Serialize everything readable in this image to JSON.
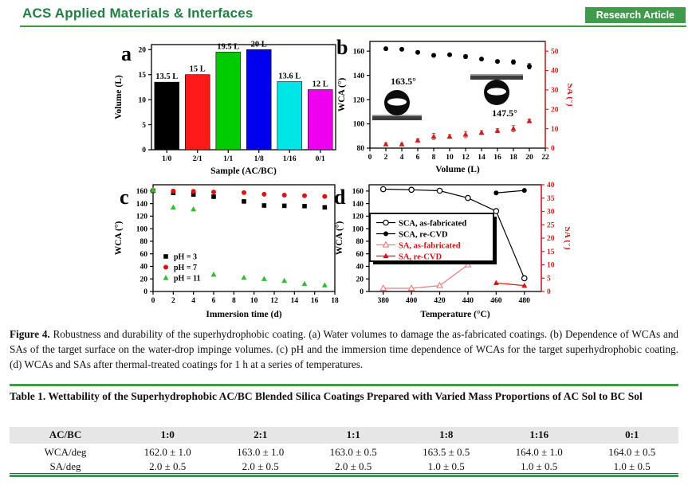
{
  "header": {
    "journal": "ACS Applied Materials & Interfaces",
    "badge": "Research Article",
    "title_color": "#1f8040",
    "badge_bg": "#3f9b4a",
    "rule_color": "#3f9b4a"
  },
  "figure": {
    "caption_label": "Figure 4.",
    "caption_text": "Robustness and durability of the superhydrophobic coating. (a) Water volumes to damage the as-fabricated coatings. (b) Dependence of WCAs and SAs of the target surface on the water-drop impinge volumes. (c) pH and the immersion time dependence of WCAs for the target superhydrophobic coating. (d) WCAs and SAs after thermal-treated coatings for 1 h at a series of temperatures."
  },
  "chart_data": [
    {
      "panel": "a",
      "type": "bar",
      "xlabel": "Sample (AC/BC)",
      "ylabel": "Volume (L)",
      "categories": [
        "1/0",
        "2/1",
        "1/1",
        "1/8",
        "1/16",
        "0/1"
      ],
      "values": [
        13.5,
        15,
        19.5,
        20,
        13.6,
        12
      ],
      "bar_labels": [
        "13.5 L",
        "15 L",
        "19.5 L",
        "20 L",
        "13.6 L",
        "12 L"
      ],
      "bar_colors": [
        "#000000",
        "#ff1a1a",
        "#00cc00",
        "#0000ee",
        "#00e6e6",
        "#ee00ee"
      ],
      "ylim": [
        0,
        21
      ],
      "yticks": [
        0,
        5,
        10,
        15,
        20
      ],
      "grid": false
    },
    {
      "panel": "b",
      "type": "scatter",
      "xlabel": "Volume (L)",
      "ylabel": "WCA (°)",
      "ylabel_right": "SA (°)",
      "right_axis_color": "#cc2020",
      "xlim": [
        0,
        22
      ],
      "xticks": [
        0,
        2,
        4,
        6,
        8,
        10,
        12,
        14,
        16,
        18,
        20,
        22
      ],
      "ylim": [
        80,
        168
      ],
      "yticks": [
        80,
        100,
        120,
        140,
        160
      ],
      "ylim_right": [
        0,
        55
      ],
      "yticks_right": [
        0,
        10,
        20,
        30,
        40,
        50
      ],
      "series": [
        {
          "name": "WCA",
          "axis": "left",
          "marker": "circle-filled",
          "color": "#000000",
          "line": false,
          "x": [
            2,
            4,
            6,
            8,
            10,
            12,
            14,
            16,
            18,
            20
          ],
          "y": [
            162,
            161.5,
            159,
            156.5,
            157,
            155.5,
            153.5,
            151.5,
            151,
            147.5
          ],
          "yerr": [
            0.8,
            0.8,
            0.8,
            1.2,
            1,
            1.5,
            1,
            1.2,
            1.8,
            2.2
          ]
        },
        {
          "name": "SA",
          "axis": "right",
          "marker": "triangle-filled",
          "color": "#cc2020",
          "line": false,
          "x": [
            2,
            4,
            6,
            8,
            10,
            12,
            14,
            16,
            18,
            20
          ],
          "y": [
            2,
            2,
            4,
            6,
            6,
            7,
            8,
            9,
            10,
            14
          ],
          "yerr": [
            0.6,
            0.6,
            0.8,
            1.6,
            1,
            1.6,
            1,
            1,
            1.6,
            1
          ]
        }
      ],
      "annotations": [
        {
          "label": "163.5°",
          "droplet": "sitting-on-surface"
        },
        {
          "label": "147.5°",
          "droplet": "hanging-below-surface"
        }
      ]
    },
    {
      "panel": "c",
      "type": "scatter",
      "xlabel": "Immersion time (d)",
      "ylabel": "WCA (°)",
      "xlim": [
        0,
        18
      ],
      "xticks": [
        0,
        2,
        4,
        6,
        8,
        10,
        12,
        14,
        16,
        18
      ],
      "ylim": [
        0,
        170
      ],
      "yticks": [
        0,
        20,
        40,
        60,
        80,
        100,
        120,
        140,
        160
      ],
      "series": [
        {
          "name": "pH = 3",
          "marker": "square-filled",
          "color": "#000000",
          "line": false,
          "x": [
            0,
            2,
            4,
            6,
            9,
            11,
            13,
            15,
            17
          ],
          "y": [
            160.5,
            157,
            154.5,
            151,
            143.5,
            137,
            136.5,
            136,
            134
          ]
        },
        {
          "name": "pH = 7",
          "marker": "circle-filled",
          "color": "#dd1111",
          "line": false,
          "x": [
            0,
            2,
            4,
            6,
            9,
            11,
            13,
            15,
            17
          ],
          "y": [
            161,
            160,
            159.5,
            158.5,
            157.5,
            155,
            153.5,
            152.5,
            151.5
          ]
        },
        {
          "name": "pH = 11",
          "marker": "triangle-filled",
          "color": "#33bb33",
          "line": false,
          "x": [
            0,
            2,
            4,
            6,
            9,
            11,
            13,
            15,
            17
          ],
          "y": [
            161.5,
            134,
            131,
            27,
            22,
            20,
            17,
            12,
            10
          ]
        }
      ],
      "legend": {
        "style": "plain",
        "position": "bottom-left"
      }
    },
    {
      "panel": "d",
      "type": "line",
      "xlabel": "Temperature (°C)",
      "ylabel": "WCA (°)",
      "ylabel_right": "SA (°)",
      "right_axis_color": "#cc2020",
      "xlim": [
        370,
        492
      ],
      "xticks": [
        380,
        400,
        420,
        440,
        460,
        480
      ],
      "ylim": [
        0,
        170
      ],
      "yticks": [
        0,
        20,
        40,
        60,
        80,
        100,
        120,
        140,
        160
      ],
      "ylim_right": [
        0,
        40
      ],
      "yticks_right": [
        0,
        5,
        10,
        15,
        20,
        25,
        30,
        35,
        40
      ],
      "series": [
        {
          "name": "SCA, as-fabricated",
          "axis": "left",
          "marker": "circle-open",
          "color": "#000000",
          "line": true,
          "x": [
            380,
            400,
            420,
            440,
            460,
            480
          ],
          "y": [
            163,
            162,
            160.5,
            149,
            128,
            21
          ]
        },
        {
          "name": "SCA, re-CVD",
          "axis": "left",
          "marker": "circle-filled",
          "color": "#000000",
          "line": true,
          "x": [
            460,
            480
          ],
          "y": [
            157,
            161
          ]
        },
        {
          "name": "SA, as-fabricated",
          "axis": "right",
          "marker": "triangle-open",
          "color": "#e87e7e",
          "line": true,
          "x": [
            380,
            400,
            420,
            440
          ],
          "y": [
            1.2,
            1.2,
            2.2,
            10
          ]
        },
        {
          "name": "SA, re-CVD",
          "axis": "right",
          "marker": "triangle-filled",
          "color": "#dd1111",
          "line": true,
          "x": [
            460,
            480
          ],
          "y": [
            3.2,
            2.2
          ]
        }
      ],
      "legend": {
        "style": "boxed",
        "position": "middle-left"
      }
    }
  ],
  "table": {
    "title": "Table 1. Wettability of the Superhydrophobic AC/BC Blended Silica Coatings Prepared with Varied Mass Proportions of AC Sol to BC Sol",
    "header": [
      "AC/BC",
      "1:0",
      "2:1",
      "1:1",
      "1:8",
      "1:16",
      "0:1"
    ],
    "rows": [
      [
        "WCA/deg",
        "162.0 ± 1.0",
        "163.0 ± 1.0",
        "163.0 ± 0.5",
        "163.5 ± 0.5",
        "164.0 ± 1.0",
        "164.0 ± 0.5"
      ],
      [
        "SA/deg",
        "2.0 ± 0.5",
        "2.0 ± 0.5",
        "2.0 ± 0.5",
        "1.0 ± 0.5",
        "1.0 ± 0.5",
        "1.0 ± 0.5"
      ]
    ]
  }
}
